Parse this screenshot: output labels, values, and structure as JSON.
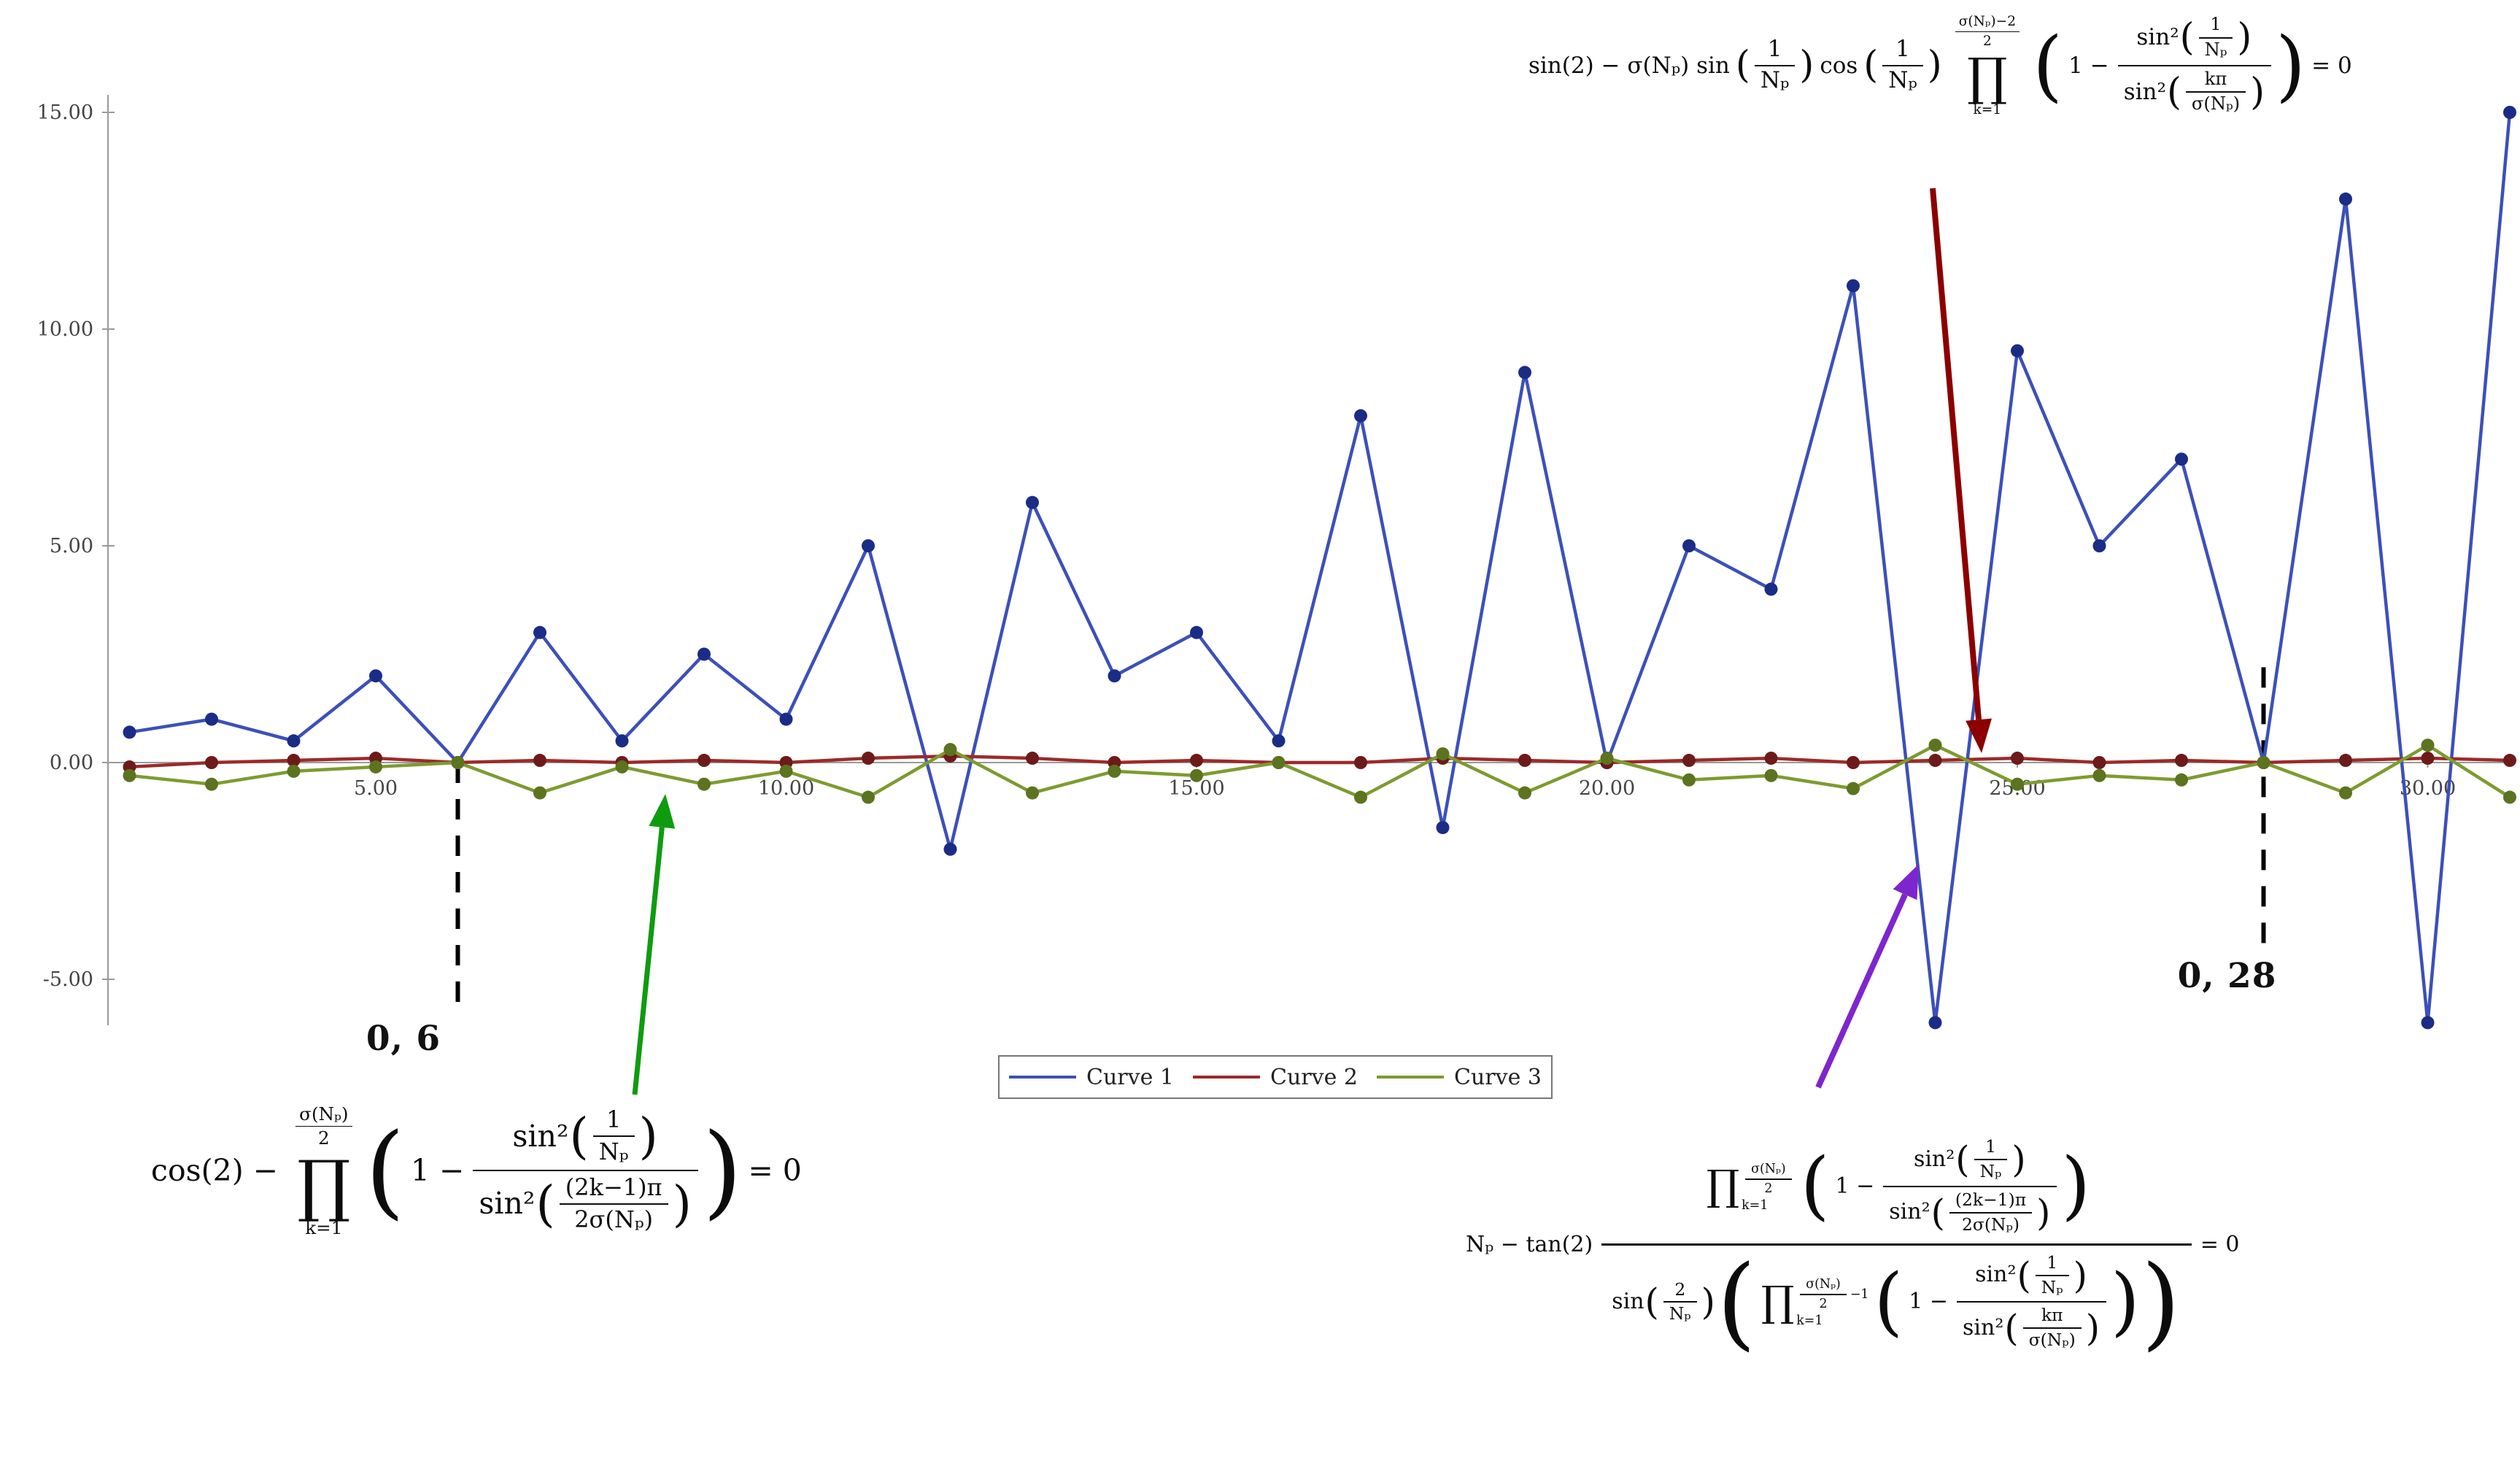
{
  "colors": {
    "curve1": "#3c50b8",
    "curve1_dot": "#1b2c86",
    "curve2": "#9c2a2a",
    "curve2_dot": "#6d1a1a",
    "curve3": "#7d9b30",
    "curve3_dot": "#5c731f",
    "axis": "#9a9a9a",
    "dashed_line": "#000000",
    "arrow_red": "#8b0000",
    "arrow_green": "#0f9b0f",
    "arrow_purple": "#7d26cd"
  },
  "chart_data": {
    "type": "line",
    "title": "",
    "xlabel": "",
    "ylabel": "",
    "grid": false,
    "xlim": [
      1.5,
      31.5
    ],
    "ylim": [
      -6.5,
      15.5
    ],
    "legend_position": "bottom-center",
    "x_ticks": [
      {
        "value": 5,
        "label": "5.00"
      },
      {
        "value": 10,
        "label": "10.00"
      },
      {
        "value": 15,
        "label": "15.00"
      },
      {
        "value": 20,
        "label": "20.00"
      },
      {
        "value": 25,
        "label": "25.00"
      },
      {
        "value": 30,
        "label": "30.00"
      }
    ],
    "y_ticks": [
      {
        "value": 15,
        "label": "15.00"
      },
      {
        "value": 10,
        "label": "10.00"
      },
      {
        "value": 5,
        "label": "5.00"
      },
      {
        "value": 0,
        "label": "0.00"
      },
      {
        "value": -5,
        "label": "-5.00"
      }
    ],
    "x": [
      2,
      3,
      4,
      5,
      6,
      7,
      8,
      9,
      10,
      11,
      12,
      13,
      14,
      15,
      16,
      17,
      18,
      19,
      20,
      21,
      22,
      23,
      24,
      25,
      26,
      27,
      28,
      29,
      30,
      31
    ],
    "series": [
      {
        "name": "Curve 1",
        "color": "#3c50b8",
        "dot_color": "#1b2c86",
        "values": [
          0.7,
          1,
          0.5,
          2,
          0,
          3,
          0.5,
          2.5,
          1,
          5,
          -2,
          6,
          2,
          3,
          0.5,
          8,
          -1.5,
          9,
          0,
          5,
          4,
          11,
          -6,
          9.5,
          5,
          7,
          0,
          13,
          -6,
          15
        ]
      },
      {
        "name": "Curve 2",
        "color": "#9c2a2a",
        "dot_color": "#6d1a1a",
        "values": [
          -0.1,
          0,
          0.05,
          0.1,
          0,
          0.05,
          0,
          0.05,
          0,
          0.1,
          0.15,
          0.1,
          0,
          0.05,
          0,
          0,
          0.1,
          0.05,
          0,
          0.05,
          0.1,
          0,
          0.05,
          0.1,
          0,
          0.05,
          0,
          0.05,
          0.1,
          0.05
        ]
      },
      {
        "name": "Curve 3",
        "color": "#7d9b30",
        "dot_color": "#5c731f",
        "values": [
          -0.3,
          -0.5,
          -0.2,
          -0.1,
          0,
          -0.7,
          -0.1,
          -0.5,
          -0.2,
          -0.8,
          0.3,
          -0.7,
          -0.2,
          -0.3,
          0,
          -0.8,
          0.2,
          -0.7,
          0.1,
          -0.4,
          -0.3,
          -0.6,
          0.4,
          -0.5,
          -0.3,
          -0.4,
          0,
          -0.7,
          0.4,
          -0.8
        ]
      }
    ]
  },
  "annotations": {
    "vline1": {
      "label": "0, 6",
      "x": 6
    },
    "vline2": {
      "label": "0, 28",
      "x": 28
    }
  },
  "m": {
    "top_lead": "sin(2) − σ(Nₚ) sin",
    "cos": "cos",
    "bl_lead": "cos(2) −",
    "br_lead": "Nₚ − tan(2)",
    "sin": "sin",
    "sin2": "sin²",
    "one": "1",
    "two": "2",
    "Np": "Nₚ",
    "kpi": "kπ",
    "sNp": "σ(Nₚ)",
    "sNpm2": "σ(Nₚ)−2",
    "k1": "k=1",
    "prod": "∏",
    "oneminus": "1 −",
    "m1": "−1",
    "p2k1": "(2k−1)π",
    "twosNp": "2σ(Nₚ)",
    "eq0": "= 0",
    "lp": "(",
    "rp": ")"
  }
}
